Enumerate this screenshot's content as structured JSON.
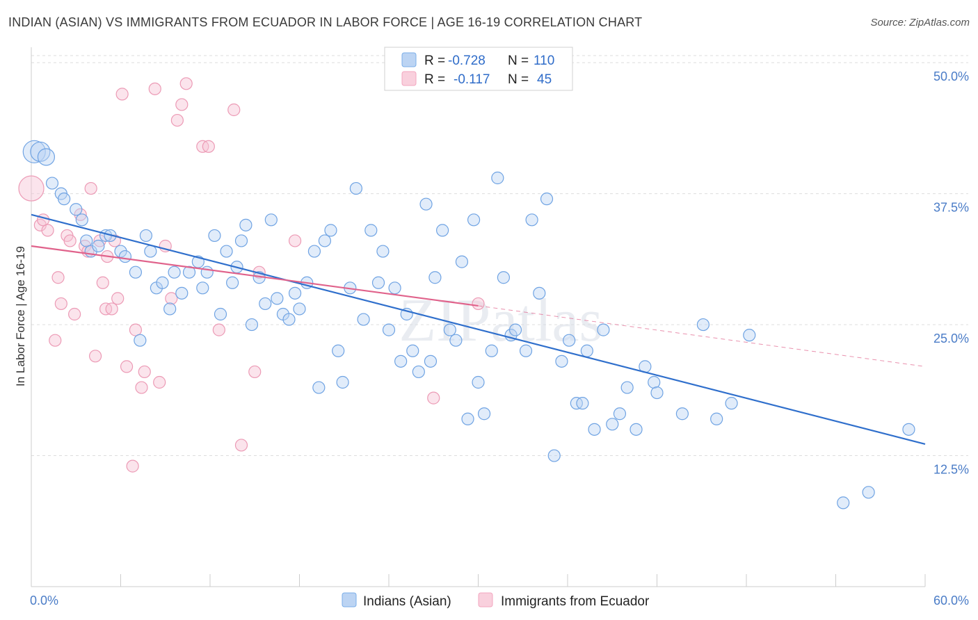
{
  "title": "INDIAN (ASIAN) VS IMMIGRANTS FROM ECUADOR IN LABOR FORCE | AGE 16-19 CORRELATION CHART",
  "source": "Source: ZipAtlas.com",
  "colors": {
    "blue": "#7aaee8",
    "blue_line": "#2f6fcc",
    "pink": "#f3a6bf",
    "pink_line": "#e0628b",
    "axis_text": "#4a7cc7"
  },
  "legend": {
    "r_label": "R =",
    "n_label": "N =",
    "series1": {
      "r": "-0.728",
      "n": "110"
    },
    "series2": {
      "r": "-0.117",
      "n": "45"
    }
  },
  "watermark": "ZIPatlas",
  "chart_data": {
    "type": "scatter",
    "title": "INDIAN (ASIAN) VS IMMIGRANTS FROM ECUADOR IN LABOR FORCE | AGE 16-19 CORRELATION CHART",
    "xlabel": "",
    "ylabel": "In Labor Force | Age 16-19",
    "xlim": [
      0,
      60
    ],
    "ylim": [
      0,
      52
    ],
    "x_tick_labels": [
      "0.0%",
      "60.0%"
    ],
    "y_ticks": [
      12.5,
      25.0,
      37.5,
      50.0
    ],
    "y_tick_labels": [
      "12.5%",
      "25.0%",
      "37.5%",
      "50.0%"
    ],
    "grid": true,
    "legend_position": "top-center",
    "series": [
      {
        "name": "Indians (Asian)",
        "color": "#7aaee8",
        "trend": {
          "x": [
            0,
            60
          ],
          "y": [
            35.5,
            13.6
          ]
        },
        "points": [
          [
            0.2,
            41.5
          ],
          [
            0.6,
            41.5
          ],
          [
            1.0,
            41.0
          ],
          [
            1.4,
            38.5
          ],
          [
            2.0,
            37.5
          ],
          [
            2.2,
            37.0
          ],
          [
            3.0,
            36.0
          ],
          [
            3.4,
            35.0
          ],
          [
            3.7,
            33.0
          ],
          [
            4.0,
            32.0
          ],
          [
            4.5,
            32.5
          ],
          [
            5.0,
            33.5
          ],
          [
            5.3,
            33.5
          ],
          [
            6.0,
            32.0
          ],
          [
            6.3,
            31.5
          ],
          [
            7.0,
            30.0
          ],
          [
            7.3,
            23.5
          ],
          [
            7.7,
            33.5
          ],
          [
            8.0,
            32.0
          ],
          [
            8.4,
            28.5
          ],
          [
            8.8,
            29.0
          ],
          [
            9.3,
            26.5
          ],
          [
            9.6,
            30.0
          ],
          [
            10.1,
            28.0
          ],
          [
            10.6,
            30.0
          ],
          [
            11.2,
            31.0
          ],
          [
            11.5,
            28.5
          ],
          [
            11.8,
            30.0
          ],
          [
            12.3,
            33.5
          ],
          [
            12.7,
            26.0
          ],
          [
            13.1,
            32.0
          ],
          [
            13.5,
            29.0
          ],
          [
            13.8,
            30.5
          ],
          [
            14.1,
            33.0
          ],
          [
            14.4,
            34.5
          ],
          [
            14.8,
            25.0
          ],
          [
            15.3,
            29.5
          ],
          [
            15.7,
            27.0
          ],
          [
            16.1,
            35.0
          ],
          [
            16.5,
            27.5
          ],
          [
            16.9,
            26.0
          ],
          [
            17.3,
            25.5
          ],
          [
            17.7,
            28.0
          ],
          [
            18.0,
            26.5
          ],
          [
            18.5,
            29.0
          ],
          [
            19.0,
            32.0
          ],
          [
            19.3,
            19.0
          ],
          [
            19.7,
            33.0
          ],
          [
            20.1,
            34.0
          ],
          [
            20.6,
            22.5
          ],
          [
            20.9,
            19.5
          ],
          [
            21.4,
            28.5
          ],
          [
            21.8,
            38.0
          ],
          [
            22.3,
            25.5
          ],
          [
            22.8,
            34.0
          ],
          [
            23.3,
            29.0
          ],
          [
            23.6,
            32.0
          ],
          [
            24.0,
            24.5
          ],
          [
            24.4,
            28.5
          ],
          [
            24.8,
            21.5
          ],
          [
            25.2,
            26.0
          ],
          [
            25.6,
            22.5
          ],
          [
            26.0,
            20.5
          ],
          [
            26.5,
            36.5
          ],
          [
            26.8,
            21.5
          ],
          [
            27.1,
            29.5
          ],
          [
            27.6,
            34.0
          ],
          [
            28.1,
            24.5
          ],
          [
            28.5,
            23.5
          ],
          [
            28.9,
            31.0
          ],
          [
            29.3,
            16.0
          ],
          [
            29.7,
            35.0
          ],
          [
            30.0,
            19.5
          ],
          [
            30.4,
            16.5
          ],
          [
            30.9,
            22.5
          ],
          [
            31.3,
            39.0
          ],
          [
            31.7,
            29.5
          ],
          [
            32.2,
            24.0
          ],
          [
            32.5,
            24.5
          ],
          [
            33.2,
            22.5
          ],
          [
            33.6,
            35.0
          ],
          [
            34.1,
            28.0
          ],
          [
            34.6,
            37.0
          ],
          [
            35.1,
            12.5
          ],
          [
            35.6,
            21.5
          ],
          [
            36.1,
            23.5
          ],
          [
            36.6,
            17.5
          ],
          [
            37.0,
            17.5
          ],
          [
            37.3,
            22.5
          ],
          [
            37.8,
            15.0
          ],
          [
            38.4,
            24.5
          ],
          [
            39.0,
            15.5
          ],
          [
            39.5,
            16.5
          ],
          [
            40.0,
            19.0
          ],
          [
            40.6,
            15.0
          ],
          [
            41.2,
            21.0
          ],
          [
            41.8,
            19.5
          ],
          [
            42.0,
            18.5
          ],
          [
            43.7,
            16.5
          ],
          [
            45.1,
            25.0
          ],
          [
            46.0,
            16.0
          ],
          [
            47.0,
            17.5
          ],
          [
            48.2,
            24.0
          ],
          [
            54.5,
            8.0
          ],
          [
            56.2,
            9.0
          ],
          [
            58.9,
            15.0
          ]
        ]
      },
      {
        "name": "Immigrants from Ecuador",
        "color": "#f3a6bf",
        "trend": {
          "x": [
            0,
            30
          ],
          "y": [
            32.5,
            26.8
          ],
          "dashed_extension": {
            "x": [
              30,
              60
            ],
            "y": [
              26.8,
              21.0
            ]
          }
        },
        "points": [
          [
            0.0,
            38.0
          ],
          [
            0.6,
            34.5
          ],
          [
            0.8,
            35.0
          ],
          [
            1.1,
            34.0
          ],
          [
            1.6,
            23.5
          ],
          [
            1.8,
            29.5
          ],
          [
            2.0,
            27.0
          ],
          [
            2.4,
            33.5
          ],
          [
            2.6,
            33.0
          ],
          [
            2.9,
            26.0
          ],
          [
            3.3,
            35.5
          ],
          [
            3.6,
            32.5
          ],
          [
            3.8,
            32.0
          ],
          [
            4.0,
            38.0
          ],
          [
            4.3,
            22.0
          ],
          [
            4.6,
            33.0
          ],
          [
            4.8,
            29.0
          ],
          [
            5.0,
            26.5
          ],
          [
            5.1,
            31.5
          ],
          [
            5.4,
            26.5
          ],
          [
            5.6,
            33.0
          ],
          [
            5.8,
            27.5
          ],
          [
            6.1,
            47.0
          ],
          [
            6.4,
            21.0
          ],
          [
            6.8,
            11.5
          ],
          [
            7.0,
            24.5
          ],
          [
            7.4,
            19.0
          ],
          [
            7.6,
            20.5
          ],
          [
            8.3,
            47.5
          ],
          [
            8.6,
            19.5
          ],
          [
            9.0,
            32.5
          ],
          [
            9.4,
            27.5
          ],
          [
            9.8,
            44.5
          ],
          [
            10.1,
            46.0
          ],
          [
            10.4,
            48.0
          ],
          [
            11.5,
            42.0
          ],
          [
            11.9,
            42.0
          ],
          [
            12.6,
            24.5
          ],
          [
            13.6,
            45.5
          ],
          [
            14.1,
            13.5
          ],
          [
            15.0,
            20.5
          ],
          [
            15.3,
            30.0
          ],
          [
            17.7,
            33.0
          ],
          [
            27.0,
            18.0
          ],
          [
            30.0,
            27.0
          ]
        ]
      }
    ]
  },
  "bottom_legend": {
    "item1": "Indians (Asian)",
    "item2": "Immigrants from Ecuador"
  }
}
